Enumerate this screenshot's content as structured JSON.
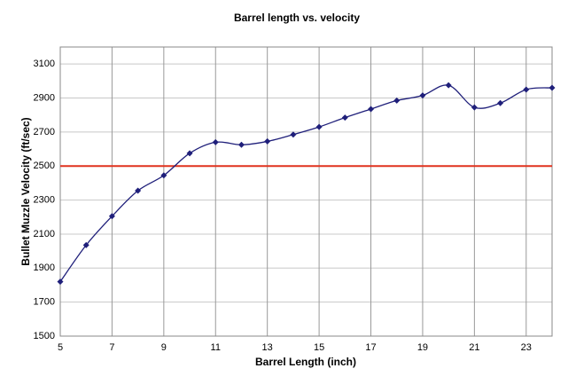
{
  "chart_data": {
    "type": "line",
    "title": "Barrel length vs. velocity",
    "x_label": "Barrel Length (inch)",
    "y_label": "Bullet Muzzle Velocity (ft/sec)",
    "x": [
      5,
      6,
      7,
      8,
      9,
      10,
      11,
      12,
      13,
      14,
      15,
      16,
      17,
      18,
      19,
      20,
      21,
      22,
      23,
      24
    ],
    "series": [
      {
        "name": "Velocity",
        "color": "#1f1f7a",
        "values": [
          1820,
          2035,
          2205,
          2355,
          2445,
          2575,
          2640,
          2625,
          2645,
          2685,
          2730,
          2785,
          2835,
          2885,
          2915,
          2975,
          2845,
          2870,
          2950,
          2960
        ]
      }
    ],
    "reference_line": {
      "value": 2500,
      "color": "#e0321e"
    },
    "xlim": [
      5,
      24
    ],
    "xticks": [
      5,
      7,
      9,
      11,
      13,
      15,
      17,
      19,
      21,
      23
    ],
    "ylim": [
      1500,
      3200
    ],
    "yticks": [
      1500,
      1700,
      1900,
      2100,
      2300,
      2500,
      2700,
      2900,
      3100
    ],
    "grid": true
  }
}
